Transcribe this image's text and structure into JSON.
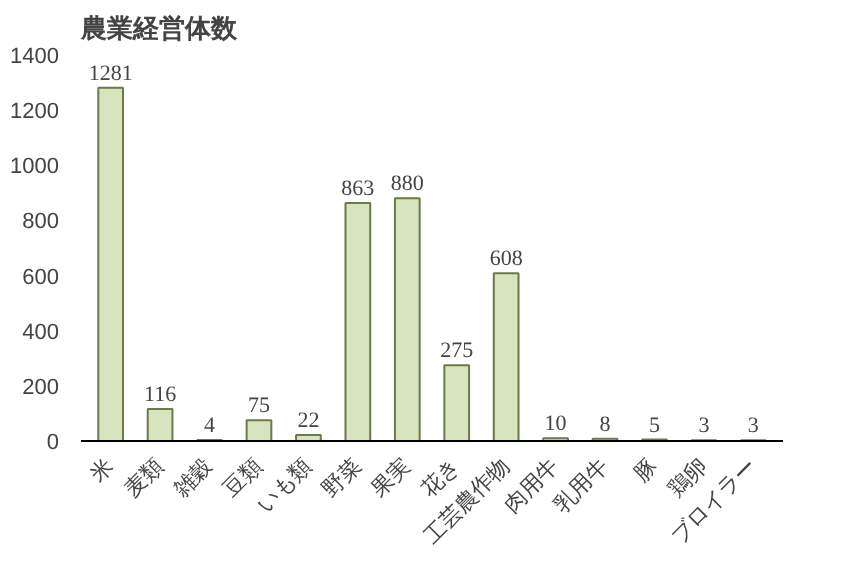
{
  "chart_data": {
    "type": "bar",
    "title": "農業経営体数",
    "categories": [
      "米",
      "麦類",
      "雑穀",
      "豆類",
      "いも類",
      "野菜",
      "果実",
      "花き",
      "工芸農作物",
      "肉用牛",
      "乳用牛",
      "豚",
      "鶏卵",
      "ブロイラー"
    ],
    "values": [
      1281,
      116,
      4,
      75,
      22,
      863,
      880,
      275,
      608,
      10,
      8,
      5,
      3,
      3
    ],
    "color": "#d7e4bd",
    "ylim": [
      0,
      1400
    ],
    "yticks": [
      0,
      200,
      400,
      600,
      800,
      1000,
      1200,
      1400
    ],
    "data_labels": true,
    "grid": false
  }
}
